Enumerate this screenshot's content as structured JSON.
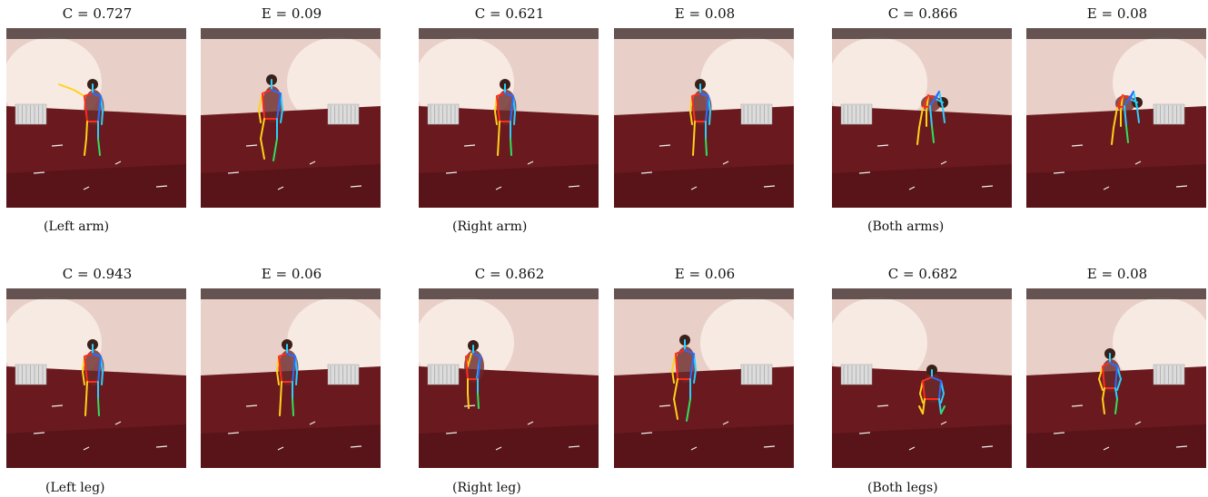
{
  "rows": [
    {
      "groups": [
        {
          "caption": "(Left arm)",
          "c_label": "C = 0.727",
          "e_label": "E = 0.09",
          "c_pose": "pointing",
          "e_pose": "walking"
        },
        {
          "caption": "(Right arm)",
          "c_label": "C = 0.621",
          "e_label": "E = 0.08",
          "c_pose": "standing",
          "e_pose": "standing"
        },
        {
          "caption": "(Both arms)",
          "c_label": "C = 0.866",
          "e_label": "E = 0.08",
          "c_pose": "bending",
          "e_pose": "bending"
        }
      ]
    },
    {
      "groups": [
        {
          "caption": "(Left leg)",
          "c_label": "C = 0.943",
          "e_label": "E = 0.06",
          "c_pose": "standing",
          "e_pose": "standing"
        },
        {
          "caption": "(Right leg)",
          "c_label": "C = 0.862",
          "e_label": "E = 0.06",
          "c_pose": "phone",
          "e_pose": "walking"
        },
        {
          "caption": "(Both legs)",
          "c_label": "C = 0.682",
          "e_label": "E = 0.08",
          "c_pose": "kneeling",
          "e_pose": "sitting"
        }
      ]
    }
  ],
  "colors": {
    "wall": "#e8d0c8",
    "wall_light": "#f8ece6",
    "floor": "#6a1a1e",
    "floor_dark": "#4c1014",
    "skeleton": [
      "#ff2a1a",
      "#ffd21a",
      "#2ad0ff",
      "#2a6bff",
      "#30e060"
    ]
  }
}
